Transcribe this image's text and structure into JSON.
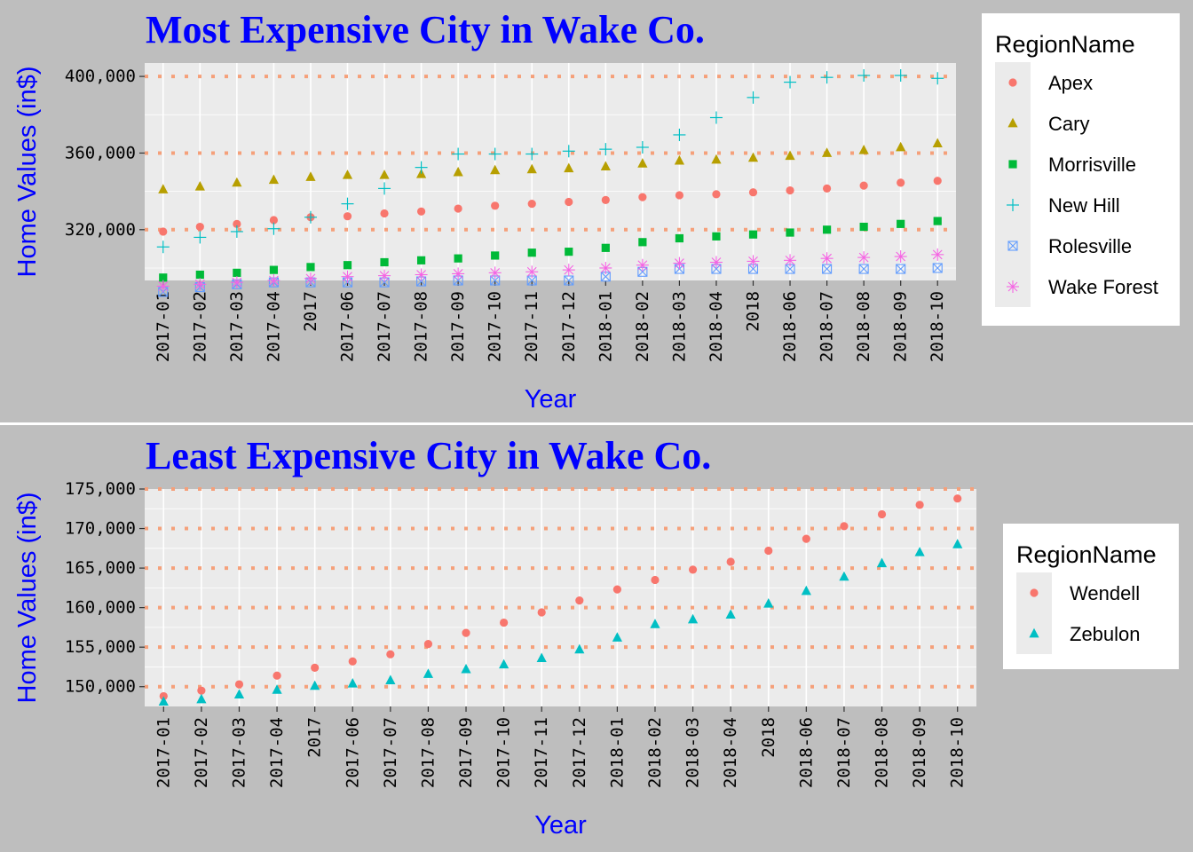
{
  "chart_data": [
    {
      "type": "scatter",
      "title": "Most Expensive City in Wake Co.",
      "xlabel": "Year",
      "ylabel": "Home Values (in$)",
      "categories": [
        "2017-01",
        "2017-02",
        "2017-03",
        "2017-04",
        "2017",
        "2017-06",
        "2017-07",
        "2017-08",
        "2017-09",
        "2017-10",
        "2017-11",
        "2017-12",
        "2018-01",
        "2018-02",
        "2018-03",
        "2018-04",
        "2018",
        "2018-06",
        "2018-07",
        "2018-08",
        "2018-09",
        "2018-10"
      ],
      "ylim": [
        293500,
        407000
      ],
      "yticks": [
        320000,
        360000,
        400000
      ],
      "ytick_labels": [
        "320,000",
        "360,000",
        "400,000"
      ],
      "grid": true,
      "legend_title": "RegionName",
      "legend_position": "right",
      "series": [
        {
          "name": "Apex",
          "color": "#F8766D",
          "shape": "circle",
          "values": [
            319000,
            321500,
            323000,
            325000,
            326500,
            327000,
            328500,
            329500,
            331000,
            332500,
            333500,
            334500,
            335500,
            337000,
            338000,
            338500,
            339500,
            340500,
            341500,
            343000,
            344500,
            345500
          ]
        },
        {
          "name": "Cary",
          "color": "#B79F00",
          "shape": "triangle",
          "values": [
            341000,
            342500,
            344500,
            346000,
            347500,
            348500,
            348500,
            349000,
            350000,
            351000,
            351500,
            352000,
            353000,
            354500,
            356000,
            356500,
            357500,
            358500,
            360000,
            361500,
            363000,
            365000
          ]
        },
        {
          "name": "Morrisville",
          "color": "#00BA38",
          "shape": "square",
          "values": [
            295000,
            296500,
            297500,
            299000,
            300500,
            301500,
            303000,
            304000,
            305000,
            306500,
            308000,
            308500,
            310500,
            313500,
            315500,
            316500,
            317500,
            318500,
            320000,
            321500,
            323000,
            324500
          ]
        },
        {
          "name": "New Hill",
          "color": "#00BFC4",
          "shape": "plus",
          "values": [
            311000,
            316000,
            319000,
            320500,
            326500,
            333500,
            341500,
            352500,
            359500,
            359500,
            359500,
            361000,
            362000,
            363000,
            369500,
            378500,
            389000,
            397000,
            399500,
            400500,
            400500,
            399000
          ]
        },
        {
          "name": "Rolesville",
          "color": "#619CFF",
          "shape": "boxx",
          "values": [
            287500,
            290000,
            291500,
            292500,
            292500,
            292500,
            292500,
            293000,
            293500,
            293500,
            293500,
            293500,
            295500,
            298000,
            299500,
            299500,
            299500,
            299500,
            299500,
            299500,
            299500,
            300000
          ]
        },
        {
          "name": "Wake Forest",
          "color": "#F564E3",
          "shape": "asterisk",
          "values": [
            290500,
            291500,
            292500,
            293500,
            294500,
            295500,
            296000,
            296500,
            297000,
            297500,
            298000,
            299000,
            300000,
            301500,
            302500,
            303000,
            303500,
            304000,
            305000,
            305500,
            306000,
            307000
          ]
        }
      ]
    },
    {
      "type": "scatter",
      "title": "Least Expensive City in Wake Co.",
      "xlabel": "Year",
      "ylabel": "Home Values (in$)",
      "categories": [
        "2017-01",
        "2017-02",
        "2017-03",
        "2017-04",
        "2017",
        "2017-06",
        "2017-07",
        "2017-08",
        "2017-09",
        "2017-10",
        "2017-11",
        "2017-12",
        "2018-01",
        "2018-02",
        "2018-03",
        "2018-04",
        "2018",
        "2018-06",
        "2018-07",
        "2018-08",
        "2018-09",
        "2018-10"
      ],
      "ylim": [
        147500,
        175000
      ],
      "yticks": [
        150000,
        155000,
        160000,
        165000,
        170000,
        175000
      ],
      "ytick_labels": [
        "150,000",
        "155,000",
        "160,000",
        "165,000",
        "170,000",
        "175,000"
      ],
      "grid": true,
      "legend_title": "RegionName",
      "legend_position": "right",
      "series": [
        {
          "name": "Wendell",
          "color": "#F8766D",
          "shape": "circle",
          "values": [
            148800,
            149500,
            150300,
            151400,
            152400,
            153200,
            154100,
            155400,
            156800,
            158100,
            159400,
            160900,
            162300,
            163500,
            164800,
            165800,
            167200,
            168700,
            170300,
            171800,
            173000,
            173800
          ]
        },
        {
          "name": "Zebulon",
          "color": "#00BFC4",
          "shape": "triangle",
          "values": [
            148100,
            148400,
            149000,
            149600,
            150100,
            150400,
            150800,
            151600,
            152200,
            152800,
            153600,
            154700,
            156200,
            157900,
            158500,
            159100,
            160500,
            162100,
            163900,
            165600,
            167000,
            168000
          ]
        }
      ]
    }
  ]
}
